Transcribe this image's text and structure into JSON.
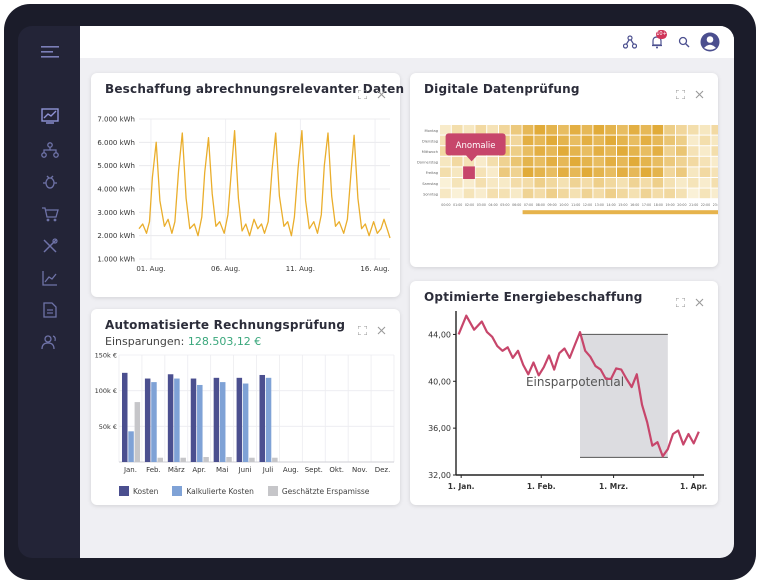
{
  "colors": {
    "accent": "#4b4f8f",
    "kosten": "#4b4f8f",
    "kalkuliert": "#7fa2d6",
    "erspamisse": "#c6c6c9",
    "energy_line": "#eaae2c",
    "price_line": "#c7466b",
    "anomaly": "#c7466b",
    "savings_text": "#3aa77c"
  },
  "topbar": {
    "notification_badge": "10+"
  },
  "sidebar": {
    "icons": [
      "menu-icon",
      "chart-icon",
      "network-icon",
      "bug-icon",
      "cart-icon",
      "tools-icon",
      "trend-icon",
      "document-icon",
      "users-icon"
    ]
  },
  "cards": {
    "beschaffung": {
      "title": "Beschaffung abrechnungsrelevanter Daten"
    },
    "datenpruefung": {
      "title": "Digitale Datenprüfung",
      "annotation": "Anomalie"
    },
    "rechnung": {
      "title": "Automatisierte Rechnungsprüfung",
      "savings_label": "Einsparungen:",
      "savings_value": "128.503,12 €"
    },
    "energie": {
      "title": "Optimierte Energiebeschaffung",
      "annotation": "Einsparpotential"
    }
  },
  "chart_data": [
    {
      "type": "line",
      "title": "Beschaffung abrechnungsrelevanter Daten",
      "ylim": [
        1000,
        7000
      ],
      "y_ticks": [
        "1.000 kWh",
        "2.000 kWh",
        "3.000 kWh",
        "4.000 kWh",
        "5.000 kWh",
        "6.000 kWh",
        "7.000 kWh"
      ],
      "x_ticks": [
        "01. Aug.",
        "06. Aug.",
        "11. Aug.",
        "16. Aug."
      ],
      "x_tick_days": [
        1,
        6,
        11,
        16
      ],
      "xlim": [
        0.2,
        17
      ],
      "series": [
        {
          "x": [
            0.2,
            0.45,
            0.7,
            0.9,
            1.1,
            1.35,
            1.6,
            1.9,
            2.15,
            2.4,
            2.6,
            2.85,
            3.1,
            3.35,
            3.6,
            3.9,
            4.15,
            4.4,
            4.6,
            4.85,
            5.1,
            5.35,
            5.6,
            5.9,
            6.15,
            6.4,
            6.6,
            6.85,
            7.1,
            7.35,
            7.6,
            7.9,
            8.15,
            8.4,
            8.6,
            8.85,
            9.1,
            9.35,
            9.6,
            9.9,
            10.15,
            10.4,
            10.6,
            10.85,
            11.1,
            11.35,
            11.6,
            11.9,
            12.15,
            12.4,
            12.6,
            12.85,
            13.1,
            13.35,
            13.6,
            13.9,
            14.15,
            14.4,
            14.6,
            14.85,
            15.1,
            15.35,
            15.6,
            15.9,
            16.15,
            16.4,
            16.6,
            16.85,
            17.0
          ],
          "y": [
            2300,
            2500,
            2100,
            2600,
            4500,
            6000,
            3500,
            2400,
            2700,
            2100,
            2600,
            4800,
            6400,
            3600,
            2300,
            2500,
            2000,
            2800,
            4700,
            6200,
            3800,
            2400,
            2600,
            2100,
            2900,
            4900,
            6500,
            3600,
            2200,
            2500,
            2000,
            2700,
            2300,
            2500,
            2100,
            2600,
            4800,
            6400,
            3700,
            2400,
            2600,
            2000,
            2800,
            4900,
            6500,
            3500,
            2300,
            2600,
            2100,
            2900,
            5000,
            6400,
            3700,
            2400,
            2600,
            2100,
            2700,
            4800,
            6300,
            3600,
            2300,
            2500,
            2000,
            2600,
            2100,
            2300,
            2700,
            2200,
            1900
          ]
        }
      ]
    },
    {
      "type": "heatmap",
      "title": "Digitale Datenprüfung",
      "rows": [
        "Montag",
        "Dienstag",
        "Mittwoch",
        "Donnerstag",
        "Freitag",
        "Samstag",
        "Sonntag"
      ],
      "columns": [
        "00:00",
        "01:00",
        "02:00",
        "03:00",
        "04:00",
        "05:00",
        "06:00",
        "07:00",
        "08:00",
        "09:00",
        "10:00",
        "11:00",
        "12:00",
        "13:00",
        "14:00",
        "15:00",
        "16:00",
        "17:00",
        "18:00",
        "19:00",
        "20:00",
        "21:00",
        "22:00",
        "23:00"
      ],
      "anomaly": {
        "row": "Freitag",
        "column": "02:00"
      }
    },
    {
      "type": "bar",
      "title": "Automatisierte Rechnungsprüfung",
      "categories": [
        "Jan.",
        "Feb.",
        "März",
        "Apr.",
        "Mai",
        "Juni",
        "Juli",
        "Aug.",
        "Sept.",
        "Okt.",
        "Nov.",
        "Dez."
      ],
      "ylim": [
        0,
        150
      ],
      "y_ticks": [
        {
          "value": 50,
          "label": "50k €"
        },
        {
          "value": 100,
          "label": "100k €"
        },
        {
          "value": 150,
          "label": "150k €"
        }
      ],
      "legend_position": "bottom",
      "series": [
        {
          "name": "Kosten",
          "values": [
            125,
            117,
            123,
            117,
            118,
            118,
            122,
            null,
            null,
            null,
            null,
            null
          ]
        },
        {
          "name": "Kalkulierte Kosten",
          "values": [
            43,
            112,
            117,
            108,
            112,
            110,
            118,
            null,
            null,
            null,
            null,
            null
          ]
        },
        {
          "name": "Geschätzte Erspamisse",
          "values": [
            84,
            6,
            6,
            7,
            7,
            6,
            6,
            null,
            null,
            null,
            null,
            null
          ]
        }
      ]
    },
    {
      "type": "line",
      "title": "Optimierte Energiebeschaffung",
      "ylim": [
        32,
        46
      ],
      "y_ticks": [
        "32,00",
        "36,00",
        "40,00",
        "44,00"
      ],
      "x_ticks": [
        "1. Jan.",
        "1. Feb.",
        "1. Mrz.",
        "1. Apr."
      ],
      "x_tick_days": [
        0,
        31,
        59,
        90
      ],
      "xlim": [
        -2,
        94
      ],
      "highlight": {
        "x_start": 46,
        "x_end": 80,
        "y_top": 44,
        "y_bottom": 33.5
      },
      "series": [
        {
          "x": [
            -1,
            2,
            5,
            8,
            10,
            12,
            14,
            16,
            18,
            20,
            22,
            24,
            26,
            28,
            30,
            32,
            34,
            36,
            38,
            40,
            42,
            44,
            46,
            48,
            50,
            52,
            54,
            56,
            58,
            60,
            62,
            64,
            66,
            68,
            70,
            72,
            74,
            76,
            78,
            80,
            82,
            84,
            86,
            88,
            90,
            92
          ],
          "y": [
            44.0,
            45.6,
            44.4,
            45.1,
            44.2,
            43.8,
            43.0,
            42.6,
            42.9,
            42.0,
            42.6,
            41.4,
            40.6,
            41.6,
            40.5,
            41.2,
            42.2,
            41.0,
            42.4,
            42.8,
            42.0,
            43.1,
            44.2,
            42.6,
            42.1,
            41.3,
            41.0,
            40.2,
            40.2,
            41.1,
            41.0,
            40.2,
            39.5,
            40.6,
            38.0,
            36.5,
            34.5,
            34.8,
            33.6,
            34.2,
            35.5,
            35.8,
            34.6,
            35.5,
            34.7,
            35.7
          ]
        }
      ]
    }
  ]
}
